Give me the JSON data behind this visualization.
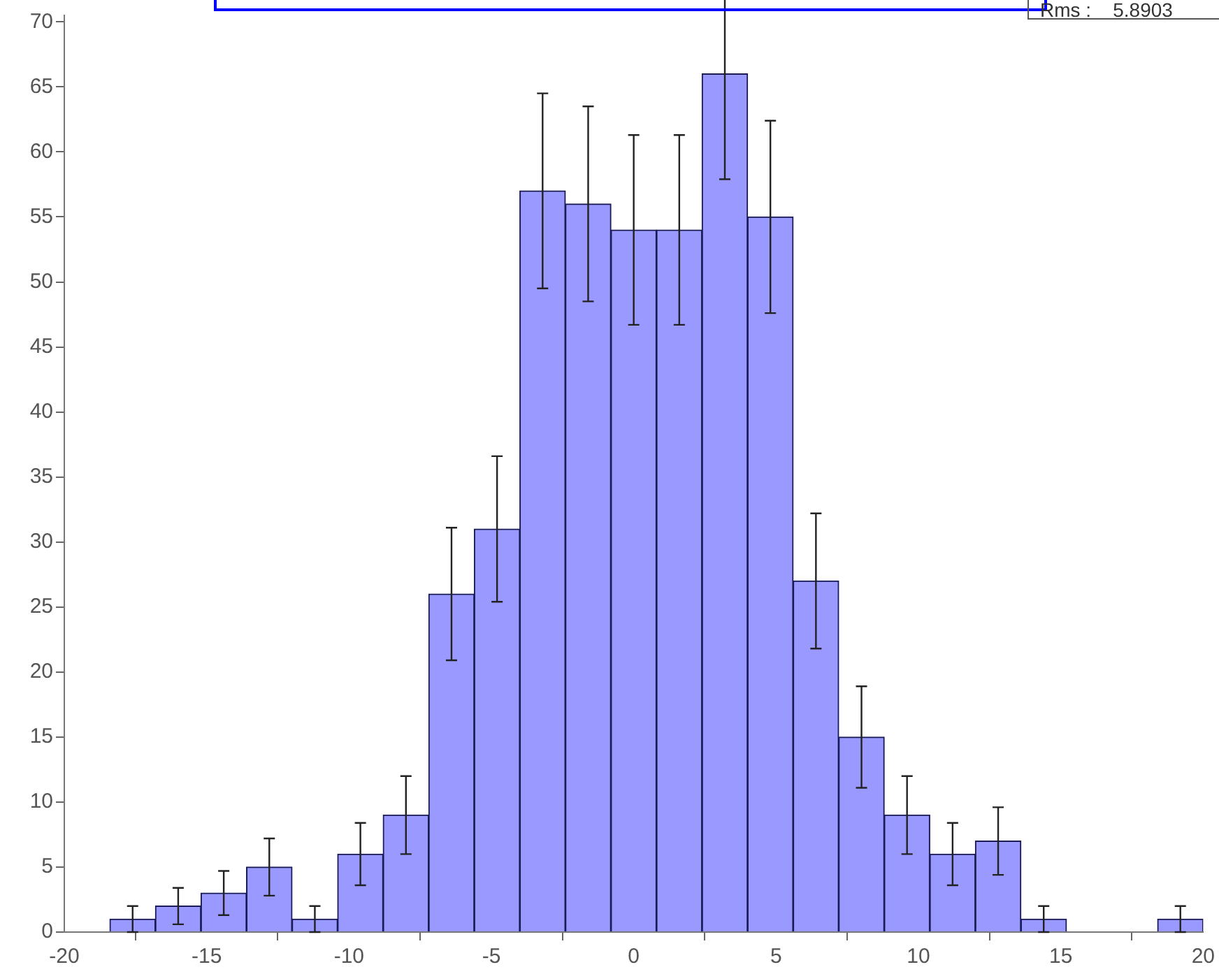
{
  "chart_data": {
    "type": "histogram",
    "bins": [
      -18.4,
      -16.8,
      -15.2,
      -13.6,
      -12,
      -10.4,
      -8.8,
      -7.2,
      -5.6,
      -4,
      -2.4,
      -0.8,
      0.8,
      2.4,
      4,
      5.6,
      7.2,
      8.8,
      10.4,
      12,
      13.6,
      15.2,
      16.8,
      18.4,
      20
    ],
    "values": [
      1,
      2,
      3,
      5,
      1,
      6,
      9,
      26,
      31,
      57,
      56,
      54,
      54,
      66,
      55,
      27,
      15,
      9,
      6,
      7,
      1,
      0,
      0,
      1
    ],
    "errors": [
      1,
      1.4,
      1.7,
      2.2,
      1,
      2.4,
      3,
      5.1,
      5.6,
      7.5,
      7.5,
      7.3,
      7.3,
      8.1,
      7.4,
      5.2,
      3.9,
      3,
      2.4,
      2.6,
      1,
      null,
      null,
      1
    ],
    "color": "#9999ff",
    "xlim": [
      -20,
      20
    ],
    "xticks": [
      -20,
      -15,
      -10,
      -5,
      0,
      5,
      10,
      15,
      20
    ],
    "ylim": [
      0,
      70.5
    ],
    "yticks": [
      0,
      5,
      10,
      15,
      20,
      25,
      30,
      35,
      40,
      45,
      50,
      55,
      60,
      65,
      70
    ],
    "grid": false,
    "annotations": [
      "Rms :    5.8903"
    ]
  }
}
